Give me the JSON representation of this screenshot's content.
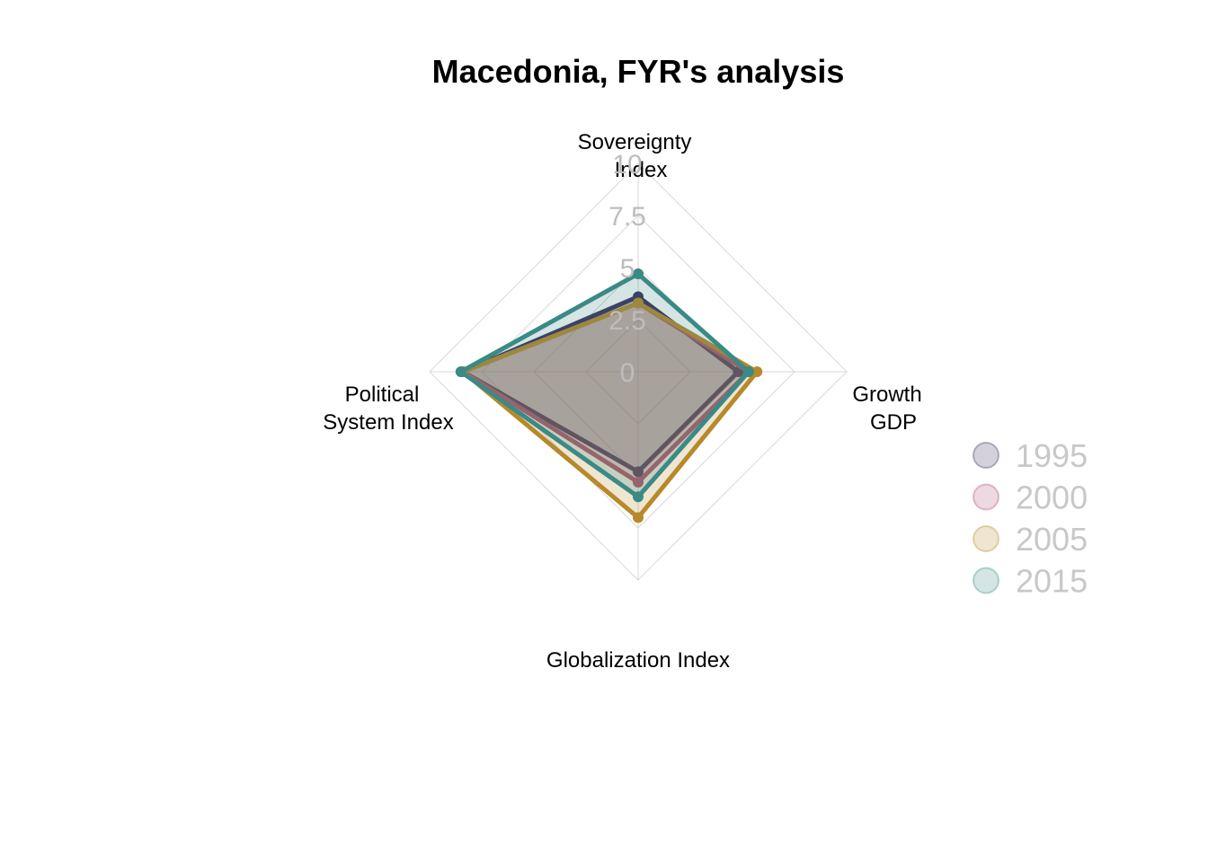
{
  "chart_data": {
    "type": "radar",
    "title": "Macedonia, FYR's analysis",
    "axes": [
      {
        "lines": [
          "Sovereignty",
          "Index"
        ]
      },
      {
        "lines": [
          "Growth",
          "GDP"
        ]
      },
      {
        "lines": [
          "Globalization Index"
        ]
      },
      {
        "lines": [
          "Political",
          "System Index"
        ]
      }
    ],
    "rlim": [
      0,
      10
    ],
    "tick_labels": [
      "0",
      "2.5",
      "5",
      "7.5",
      "10"
    ],
    "grid": true,
    "legend_position": "right",
    "series": [
      {
        "name": "1995",
        "color": "#3b2f5e",
        "values": [
          3.6,
          4.8,
          4.8,
          8.4
        ]
      },
      {
        "name": "2000",
        "color": "#b04d7a",
        "values": [
          3.3,
          5.3,
          5.3,
          8.4
        ]
      },
      {
        "name": "2005",
        "color": "#b8892a",
        "values": [
          3.3,
          5.7,
          7.0,
          8.4
        ]
      },
      {
        "name": "2015",
        "color": "#3a8a86",
        "values": [
          4.7,
          5.3,
          6.0,
          8.5
        ]
      }
    ]
  }
}
